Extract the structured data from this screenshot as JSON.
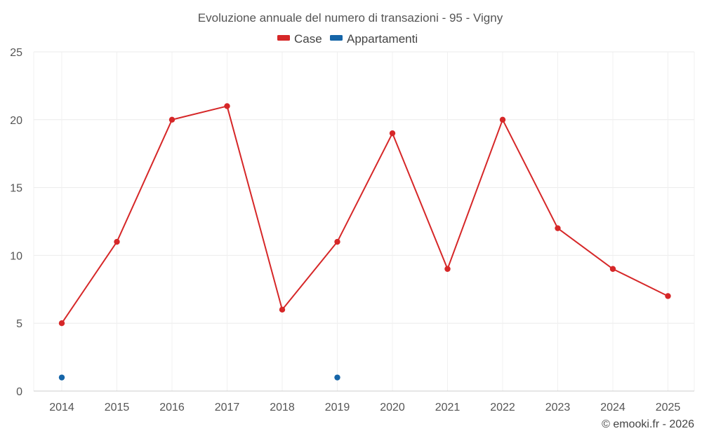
{
  "chart_data": {
    "type": "line",
    "title": "Evoluzione annuale del numero di transazioni - 95 - Vigny",
    "x": [
      2014,
      2015,
      2016,
      2017,
      2018,
      2019,
      2020,
      2021,
      2022,
      2023,
      2024,
      2025
    ],
    "series": [
      {
        "name": "Case",
        "color": "#d62728",
        "values": [
          5,
          11,
          20,
          21,
          6,
          11,
          19,
          9,
          20,
          12,
          9,
          7
        ]
      },
      {
        "name": "Appartamenti",
        "color": "#1565a8",
        "values": [
          1,
          null,
          null,
          null,
          null,
          1,
          null,
          null,
          null,
          null,
          null,
          null
        ]
      }
    ],
    "ylim": [
      0,
      25
    ],
    "yticks": [
      0,
      5,
      10,
      15,
      20,
      25
    ],
    "grid": true,
    "legend": "top-center"
  },
  "credit": "© emooki.fr - 2026"
}
